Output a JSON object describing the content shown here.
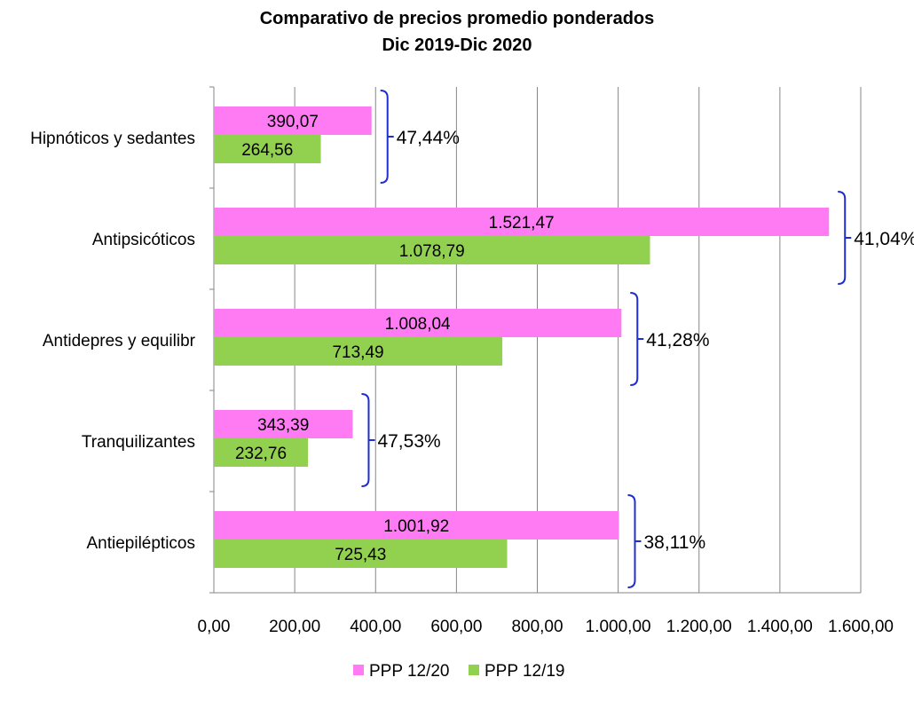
{
  "chart_data": {
    "type": "bar",
    "orientation": "horizontal",
    "title": "Comparativo de precios promedio ponderados",
    "subtitle": "Dic 2019-Dic 2020",
    "categories": [
      "Hipnóticos y sedantes",
      "Antipsicóticos",
      "Antidepres y equilibr",
      "Tranquilizantes",
      "Antiepilépticos"
    ],
    "series": [
      {
        "name": "PPP 12/20",
        "color": "#FF7BF3",
        "values": [
          390.07,
          1521.47,
          1008.04,
          343.39,
          1001.92
        ],
        "labels": [
          "390,07",
          "1.521,47",
          "1.008,04",
          "343,39",
          "1.001,92"
        ]
      },
      {
        "name": "PPP 12/19",
        "color": "#92D050",
        "values": [
          264.56,
          1078.79,
          713.49,
          232.76,
          725.43
        ],
        "labels": [
          "264,56",
          "1.078,79",
          "713,49",
          "232,76",
          "725,43"
        ]
      }
    ],
    "annotations": [
      "47,44%",
      "41,04%",
      "41,28%",
      "47,53%",
      "38,11%"
    ],
    "xlim": [
      0,
      1600
    ],
    "xticks": [
      0,
      200,
      400,
      600,
      800,
      1000,
      1200,
      1400,
      1600
    ],
    "xtick_labels": [
      "0,00",
      "200,00",
      "400,00",
      "600,00",
      "800,00",
      "1.000,00",
      "1.200,00",
      "1.400,00",
      "1.600,00"
    ],
    "grid": "vertical",
    "legend_position": "bottom",
    "bracket_color": "#1F2ECF"
  }
}
